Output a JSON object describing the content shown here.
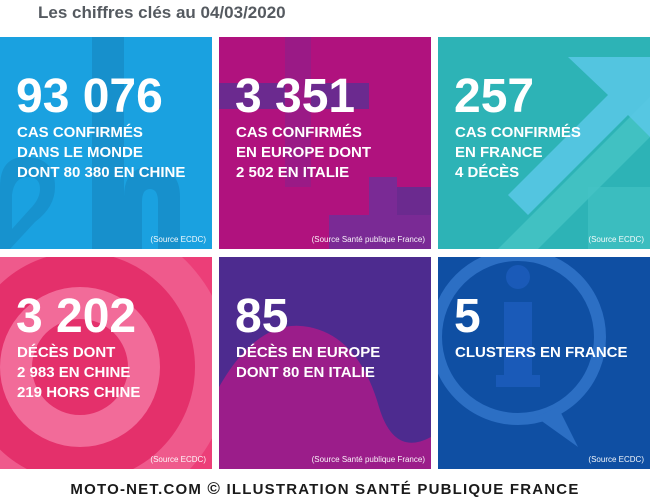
{
  "header": {
    "title": "Les chiffres clés au 04/03/2020"
  },
  "tiles": [
    {
      "number": "93 076",
      "desc": "CAS CONFIRMÉS\nDANS LE MONDE\nDONT 80 380 EN CHINE",
      "source": "(Source ECDC)",
      "color": "#1aa1e0"
    },
    {
      "number": "3 351",
      "desc": "CAS CONFIRMÉS\nEN EUROPE DONT\n2 502 EN ITALIE",
      "source": "(Source Santé publique France)",
      "color": "#b0127e"
    },
    {
      "number": "257",
      "desc": "CAS CONFIRMÉS\nEN FRANCE\n4 DÉCÈS",
      "source": "(Source ECDC)",
      "color": "#2db3b6"
    },
    {
      "number": "3 202",
      "desc": "DÉCÈS DONT\n2 983 EN CHINE\n219 HORS CHINE",
      "source": "(Source ECDC)",
      "color": "#ec3e78"
    },
    {
      "number": "85",
      "desc": "DÉCÈS EN EUROPE\nDONT 80 EN ITALIE",
      "source": "(Source Santé publique France)",
      "color": "#4d2b8f"
    },
    {
      "number": "5",
      "desc": "CLUSTERS EN FRANCE",
      "source": "(Source ECDC)",
      "color": "#0f4fa3"
    }
  ],
  "footer": {
    "left": "MOTO-NET.COM",
    "copy": "©",
    "right": "ILLUSTRATION SANTÉ PUBLIQUE FRANCE"
  }
}
